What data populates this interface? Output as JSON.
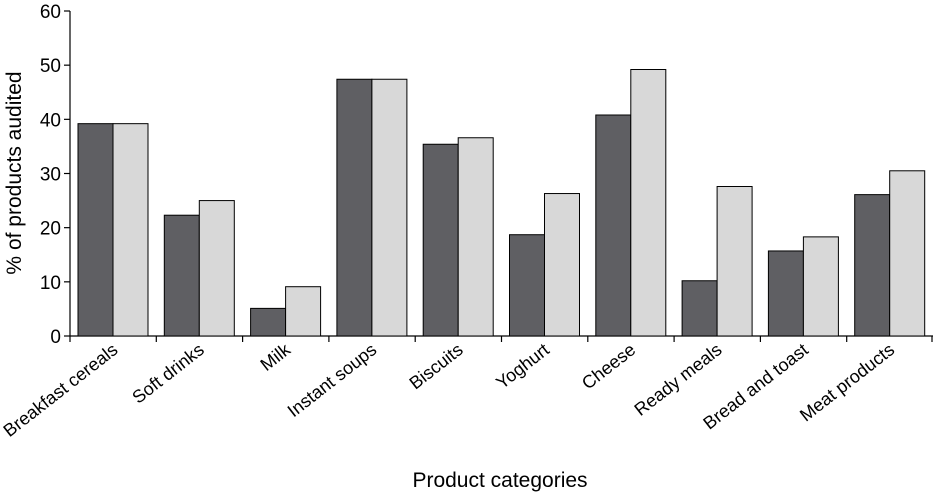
{
  "chart_data": {
    "type": "bar",
    "title": "",
    "xlabel": "Product categories",
    "ylabel": "% of products audited",
    "ylim": [
      0,
      60
    ],
    "yticks": [
      0,
      10,
      20,
      30,
      40,
      50,
      60
    ],
    "grid": false,
    "categories": [
      "Breakfast cereals",
      "Soft drinks",
      "Milk",
      "Instant soups",
      "Biscuits",
      "Yoghurt",
      "Cheese",
      "Ready meals",
      "Bread and toast",
      "Meat products"
    ],
    "series": [
      {
        "values": [
          39.2,
          22.3,
          5.1,
          47.4,
          35.4,
          18.7,
          40.8,
          10.2,
          15.7,
          26.1
        ],
        "color": "#5f5f63"
      },
      {
        "values": [
          39.2,
          25.0,
          9.1,
          47.4,
          36.6,
          26.3,
          49.2,
          27.6,
          18.3,
          30.5
        ],
        "color": "#d8d8d8"
      }
    ]
  }
}
